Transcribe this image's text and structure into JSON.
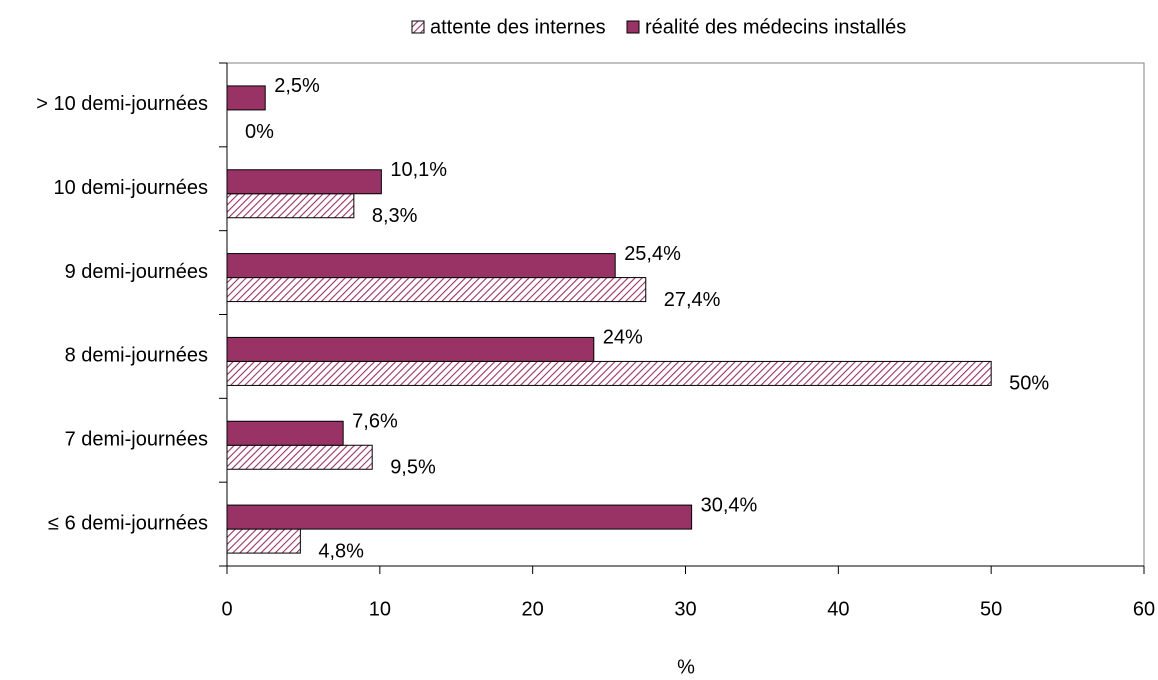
{
  "chart_data": {
    "type": "hbar",
    "categories": [
      "> 10 demi-journées",
      "10 demi-journées",
      "9 demi-journées",
      "8 demi-journées",
      "7 demi-journées",
      "≤ 6 demi-journées"
    ],
    "series": [
      {
        "name": "attente des internes",
        "color": "#993366",
        "pattern": "hatch",
        "values": [
          0,
          8.3,
          27.4,
          50,
          9.5,
          4.8
        ],
        "value_labels": [
          "0%",
          "8,3%",
          "27,4%",
          "50%",
          "9,5%",
          "4,8%"
        ]
      },
      {
        "name": "réalité des médecins installés",
        "color": "#993366",
        "pattern": "solid",
        "values": [
          2.5,
          10.1,
          25.4,
          24,
          7.6,
          30.4
        ],
        "value_labels": [
          "2,5%",
          "10,1%",
          "25,4%",
          "24%",
          "7,6%",
          "30,4%"
        ]
      }
    ],
    "xlabel": "%",
    "xlim": [
      0,
      60
    ],
    "xticks": [
      0,
      10,
      20,
      30,
      40,
      50,
      60
    ],
    "legend": "top",
    "grid": false
  }
}
